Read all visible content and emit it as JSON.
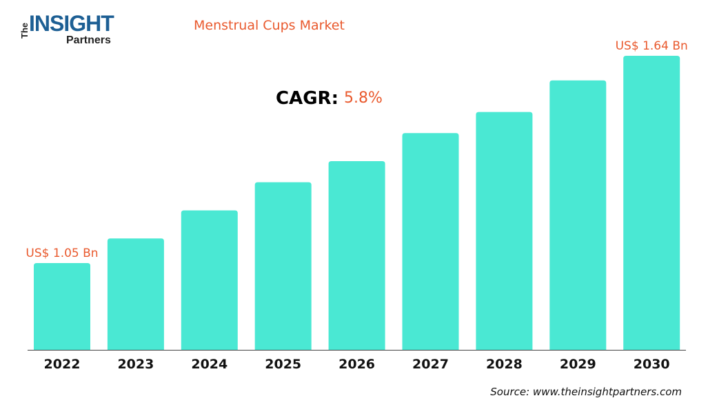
{
  "logo": {
    "text": "The INSIGHT Partners",
    "the": "The",
    "insight": "INSIGHT",
    "partners": "Partners"
  },
  "chart_data": {
    "type": "bar",
    "title": "Menstrual Cups Market",
    "categories": [
      "2022",
      "2023",
      "2024",
      "2025",
      "2026",
      "2027",
      "2028",
      "2029",
      "2030"
    ],
    "values": [
      1.05,
      1.12,
      1.2,
      1.28,
      1.34,
      1.42,
      1.48,
      1.57,
      1.64
    ],
    "unit": "US$ Bn",
    "data_labels": {
      "first": "US$ 1.05 Bn",
      "last": "US$ 1.64 Bn"
    },
    "cagr_label": "CAGR:",
    "cagr_value": "5.8%",
    "xlabel": "",
    "ylabel": "",
    "grid": false,
    "bar_color": "#4ae8d3",
    "label_color": "#e9592d"
  },
  "source": "Source: www.theinsightpartners.com"
}
